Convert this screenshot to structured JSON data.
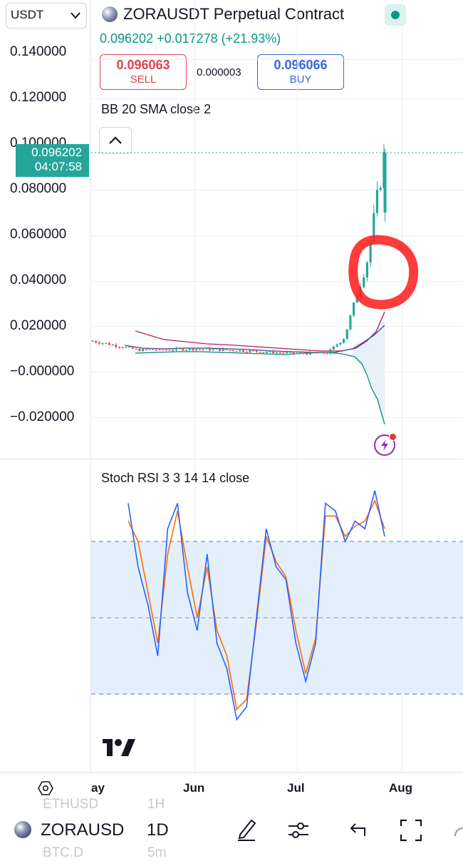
{
  "header": {
    "currency_select": "USDT",
    "title": "ZORAUSDT Perpetual Contract",
    "price_change": "0.096202 +0.017278 (+21.93%)",
    "sell_price": "0.096063",
    "sell_label": "SELL",
    "spread": "0.000003",
    "buy_price": "0.096066",
    "buy_label": "BUY"
  },
  "indicators": {
    "bb_label": "BB 20 SMA close 2",
    "stoch_label": "Stoch RSI 3 3 14 14 close"
  },
  "price_axis": {
    "ticks": [
      "0.140000",
      "0.120000",
      "0.100000",
      "0.080000",
      "0.060000",
      "0.040000",
      "0.020000",
      "−0.000000",
      "−0.020000"
    ],
    "current_price": "0.096202",
    "countdown": "04:07:58"
  },
  "time_axis": {
    "ticks": [
      "ay",
      "Jun",
      "Jul",
      "Aug"
    ]
  },
  "bottom_bar": {
    "symbol": "ZORAUSD",
    "interval": "1D",
    "ghost_symbol_1": "ETHUSD",
    "ghost_interval_1": "1H",
    "ghost_symbol_2": "BTC.D",
    "ghost_interval_2": "5m"
  },
  "logo": "TV",
  "colors": {
    "up": "#26a69a",
    "down": "#ef5350",
    "stoch_k": "#2962ff",
    "stoch_d": "#ff6d00",
    "annotation": "#ff1a1a",
    "sell": "#e0424f",
    "buy": "#3a66d6"
  },
  "chart_data": [
    {
      "type": "candlestick",
      "title": "ZORAUSDT Perpetual Contract",
      "interval": "1D",
      "indicator": "BB 20 SMA close 2",
      "ylim": [
        -0.03,
        0.15
      ],
      "x_ticks": [
        "May",
        "Jun",
        "Jul",
        "Aug"
      ],
      "last_price": 0.096202,
      "price_trend": [
        {
          "date": "2025-05-01",
          "close": 0.0135
        },
        {
          "date": "2025-05-15",
          "close": 0.0095
        },
        {
          "date": "2025-06-01",
          "close": 0.01
        },
        {
          "date": "2025-06-15",
          "close": 0.0092
        },
        {
          "date": "2025-07-01",
          "close": 0.008
        },
        {
          "date": "2025-07-10",
          "close": 0.0082
        },
        {
          "date": "2025-07-15",
          "close": 0.015
        },
        {
          "date": "2025-07-20",
          "close": 0.04
        },
        {
          "date": "2025-07-22",
          "close": 0.05
        },
        {
          "date": "2025-07-25",
          "close": 0.078
        },
        {
          "date": "2025-07-27",
          "close": 0.0962
        }
      ]
    },
    {
      "type": "line",
      "title": "Stoch RSI 3 3 14 14 close",
      "ylim": [
        -10,
        110
      ],
      "bands": [
        80,
        50,
        20
      ],
      "series": [
        {
          "values": [
            95,
            70,
            55,
            35,
            85,
            95,
            60,
            45,
            75,
            40,
            30,
            10,
            15,
            50,
            85,
            70,
            65,
            40,
            25,
            40,
            95,
            92,
            80,
            88,
            85,
            100,
            82
          ]
        },
        {
          "values": [
            88,
            80,
            60,
            40,
            75,
            92,
            70,
            50,
            70,
            45,
            35,
            14,
            18,
            48,
            82,
            72,
            66,
            45,
            28,
            42,
            90,
            90,
            82,
            86,
            88,
            96,
            85
          ]
        }
      ]
    }
  ]
}
